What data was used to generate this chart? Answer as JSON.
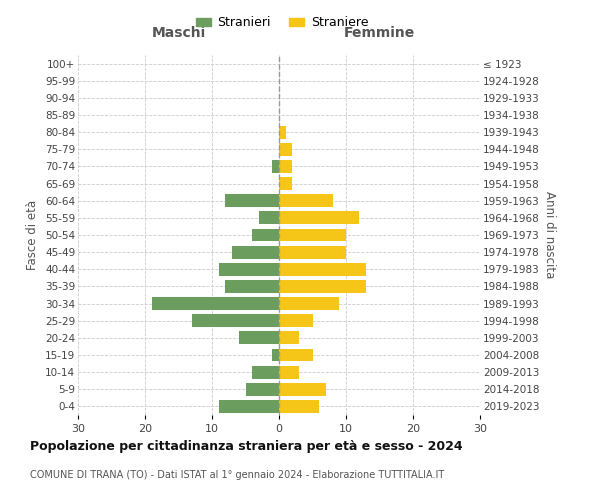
{
  "age_groups": [
    "0-4",
    "5-9",
    "10-14",
    "15-19",
    "20-24",
    "25-29",
    "30-34",
    "35-39",
    "40-44",
    "45-49",
    "50-54",
    "55-59",
    "60-64",
    "65-69",
    "70-74",
    "75-79",
    "80-84",
    "85-89",
    "90-94",
    "95-99",
    "100+"
  ],
  "birth_years": [
    "2019-2023",
    "2014-2018",
    "2009-2013",
    "2004-2008",
    "1999-2003",
    "1994-1998",
    "1989-1993",
    "1984-1988",
    "1979-1983",
    "1974-1978",
    "1969-1973",
    "1964-1968",
    "1959-1963",
    "1954-1958",
    "1949-1953",
    "1944-1948",
    "1939-1943",
    "1934-1938",
    "1929-1933",
    "1924-1928",
    "≤ 1923"
  ],
  "males": [
    9,
    5,
    4,
    1,
    6,
    13,
    19,
    8,
    9,
    7,
    4,
    3,
    8,
    0,
    1,
    0,
    0,
    0,
    0,
    0,
    0
  ],
  "females": [
    6,
    7,
    3,
    5,
    3,
    5,
    9,
    13,
    13,
    10,
    10,
    12,
    8,
    2,
    2,
    2,
    1,
    0,
    0,
    0,
    0
  ],
  "male_color": "#6b9e5e",
  "female_color": "#f5c518",
  "background_color": "#ffffff",
  "grid_color": "#cccccc",
  "title": "Popolazione per cittadinanza straniera per età e sesso - 2024",
  "subtitle": "COMUNE DI TRANA (TO) - Dati ISTAT al 1° gennaio 2024 - Elaborazione TUTTITALIA.IT",
  "xlabel_left": "Maschi",
  "xlabel_right": "Femmine",
  "ylabel_left": "Fasce di età",
  "ylabel_right": "Anni di nascita",
  "legend_male": "Stranieri",
  "legend_female": "Straniere",
  "xlim": 30,
  "bar_height": 0.75
}
